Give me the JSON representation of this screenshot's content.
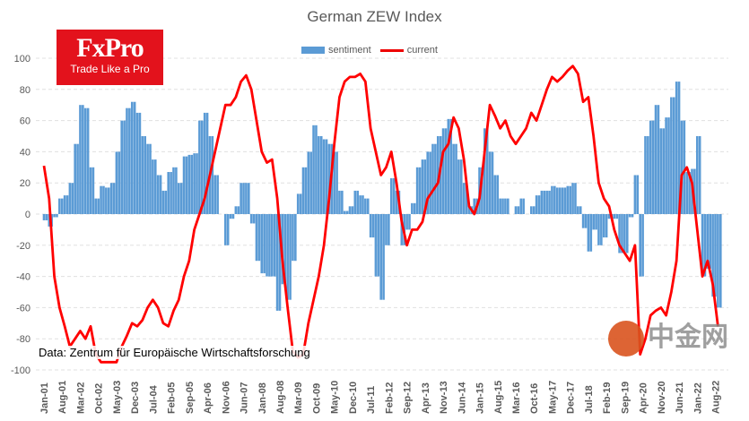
{
  "logo": {
    "brand": "FxPro",
    "tagline": "Trade Like a Pro"
  },
  "source": "Data: Zentrum für Europäische Wirtschaftsforschung",
  "watermark": "中金网",
  "chart_data": {
    "type": "bar+line",
    "title": "German ZEW Index",
    "ylim": [
      -100,
      100
    ],
    "yticks": [
      100,
      80,
      60,
      40,
      20,
      0,
      -20,
      -40,
      -60,
      -80,
      -100
    ],
    "grid": true,
    "legend_position": "top",
    "x_start": "Jan-01",
    "x_end": "Sep-22",
    "sampling": "every 2 months",
    "xticks": [
      "Jan-01",
      "Aug-01",
      "Mar-02",
      "Oct-02",
      "May-03",
      "Dec-03",
      "Jul-04",
      "Feb-05",
      "Sep-05",
      "Apr-06",
      "Nov-06",
      "Jun-07",
      "Jan-08",
      "Aug-08",
      "Mar-09",
      "Oct-09",
      "May-10",
      "Dec-10",
      "Jul-11",
      "Feb-12",
      "Sep-12",
      "Apr-13",
      "Nov-13",
      "Jun-14",
      "Jan-15",
      "Aug-15",
      "Mar-16",
      "Oct-16",
      "May-17",
      "Dec-17",
      "Jul-18",
      "Feb-19",
      "Sep-19",
      "Apr-20",
      "Nov-20",
      "Jun-21",
      "Jan-22",
      "Aug-22"
    ],
    "series": [
      {
        "name": "sentiment",
        "type": "bar",
        "color": "#5b9bd5",
        "values": [
          -4,
          -8,
          -2,
          10,
          12,
          20,
          45,
          70,
          68,
          30,
          10,
          18,
          17,
          20,
          40,
          60,
          68,
          72,
          65,
          50,
          45,
          35,
          25,
          15,
          27,
          30,
          20,
          37,
          38,
          39,
          60,
          65,
          50,
          25,
          0,
          -20,
          -3,
          5,
          20,
          20,
          -6,
          -30,
          -38,
          -40,
          -40,
          -62,
          -45,
          -55,
          -30,
          13,
          30,
          40,
          57,
          50,
          48,
          45,
          40,
          15,
          2,
          5,
          15,
          12,
          10,
          -15,
          -40,
          -55,
          -20,
          23,
          15,
          -20,
          -10,
          7,
          30,
          35,
          40,
          45,
          50,
          55,
          61,
          45,
          35,
          20,
          5,
          10,
          30,
          55,
          40,
          25,
          10,
          10,
          0,
          5,
          10,
          0,
          5,
          12,
          15,
          15,
          18,
          17,
          17,
          18,
          20,
          5,
          -9,
          -24,
          -10,
          -20,
          -15,
          -3,
          -3,
          -25,
          -25,
          -2,
          25,
          -40,
          50,
          60,
          70,
          55,
          62,
          75,
          85,
          60,
          27,
          29,
          50,
          -40,
          -35,
          -53,
          -60
        ]
      },
      {
        "name": "current",
        "type": "line",
        "color": "#ff0000",
        "values": [
          31,
          10,
          -40,
          -60,
          -72,
          -85,
          -80,
          -75,
          -80,
          -72,
          -90,
          -95,
          -95,
          -95,
          -95,
          -85,
          -78,
          -70,
          -72,
          -68,
          -60,
          -55,
          -60,
          -70,
          -72,
          -62,
          -55,
          -40,
          -30,
          -10,
          0,
          10,
          25,
          40,
          55,
          70,
          70,
          75,
          85,
          89,
          80,
          60,
          40,
          33,
          35,
          10,
          -30,
          -60,
          -88,
          -92,
          -90,
          -70,
          -55,
          -40,
          -20,
          10,
          45,
          75,
          85,
          88,
          88,
          90,
          85,
          55,
          40,
          25,
          30,
          40,
          20,
          -5,
          -20,
          -10,
          -10,
          -5,
          10,
          15,
          20,
          40,
          45,
          62,
          55,
          35,
          5,
          0,
          10,
          40,
          70,
          63,
          55,
          60,
          50,
          45,
          50,
          55,
          65,
          60,
          70,
          80,
          88,
          85,
          88,
          92,
          95,
          90,
          72,
          75,
          50,
          20,
          10,
          5,
          -10,
          -20,
          -25,
          -30,
          -20,
          -90,
          -80,
          -65,
          -62,
          -60,
          -65,
          -50,
          -30,
          25,
          30,
          20,
          -10,
          -40,
          -30,
          -45,
          -72
        ]
      }
    ]
  }
}
